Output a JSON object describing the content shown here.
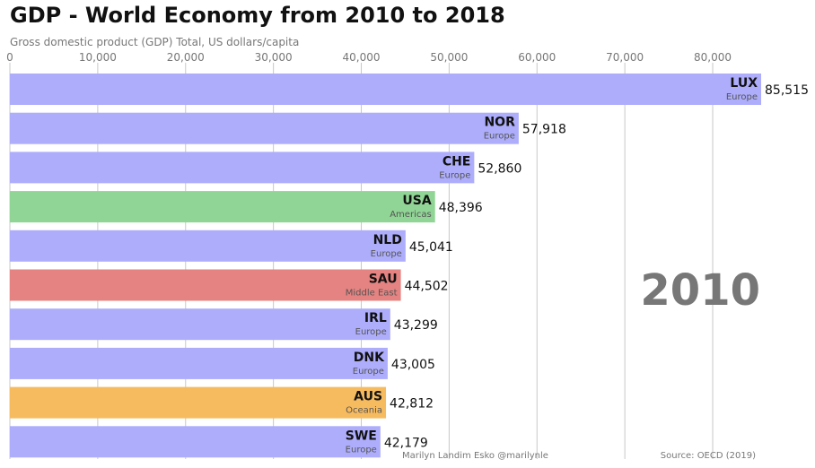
{
  "header": {
    "title": "GDP - World Economy from 2010 to 2018",
    "subtitle": "Gross domestic product (GDP) Total, US dollars/capita"
  },
  "year_label": "2010",
  "footer": {
    "author": "Marilyn Landim Esko @marilynle",
    "source": "Source: OECD (2019)"
  },
  "chart_data": {
    "type": "bar",
    "orientation": "horizontal",
    "title": "GDP - World Economy from 2010 to 2018",
    "subtitle": "Gross domestic product (GDP) Total, US dollars/capita",
    "xlim": [
      0,
      85515
    ],
    "x_ticks": [
      0,
      10000,
      20000,
      30000,
      40000,
      50000,
      60000,
      70000,
      80000
    ],
    "x_tick_labels": [
      "0",
      "10,000",
      "20,000",
      "30,000",
      "40,000",
      "50,000",
      "60,000",
      "70,000",
      "80,000"
    ],
    "axis_position": "top",
    "grid": true,
    "region_colors": {
      "Europe": "#adadfc",
      "Americas": "#90d595",
      "Middle East": "#e48381",
      "Oceania": "#f7bb5f"
    },
    "bars": [
      {
        "code": "LUX",
        "region": "Europe",
        "value": 85515,
        "value_label": "85,515"
      },
      {
        "code": "NOR",
        "region": "Europe",
        "value": 57918,
        "value_label": "57,918"
      },
      {
        "code": "CHE",
        "region": "Europe",
        "value": 52860,
        "value_label": "52,860"
      },
      {
        "code": "USA",
        "region": "Americas",
        "value": 48396,
        "value_label": "48,396"
      },
      {
        "code": "NLD",
        "region": "Europe",
        "value": 45041,
        "value_label": "45,041"
      },
      {
        "code": "SAU",
        "region": "Middle East",
        "value": 44502,
        "value_label": "44,502"
      },
      {
        "code": "IRL",
        "region": "Europe",
        "value": 43299,
        "value_label": "43,299"
      },
      {
        "code": "DNK",
        "region": "Europe",
        "value": 43005,
        "value_label": "43,005"
      },
      {
        "code": "AUS",
        "region": "Oceania",
        "value": 42812,
        "value_label": "42,812"
      },
      {
        "code": "SWE",
        "region": "Europe",
        "value": 42179,
        "value_label": "42,179"
      }
    ]
  }
}
